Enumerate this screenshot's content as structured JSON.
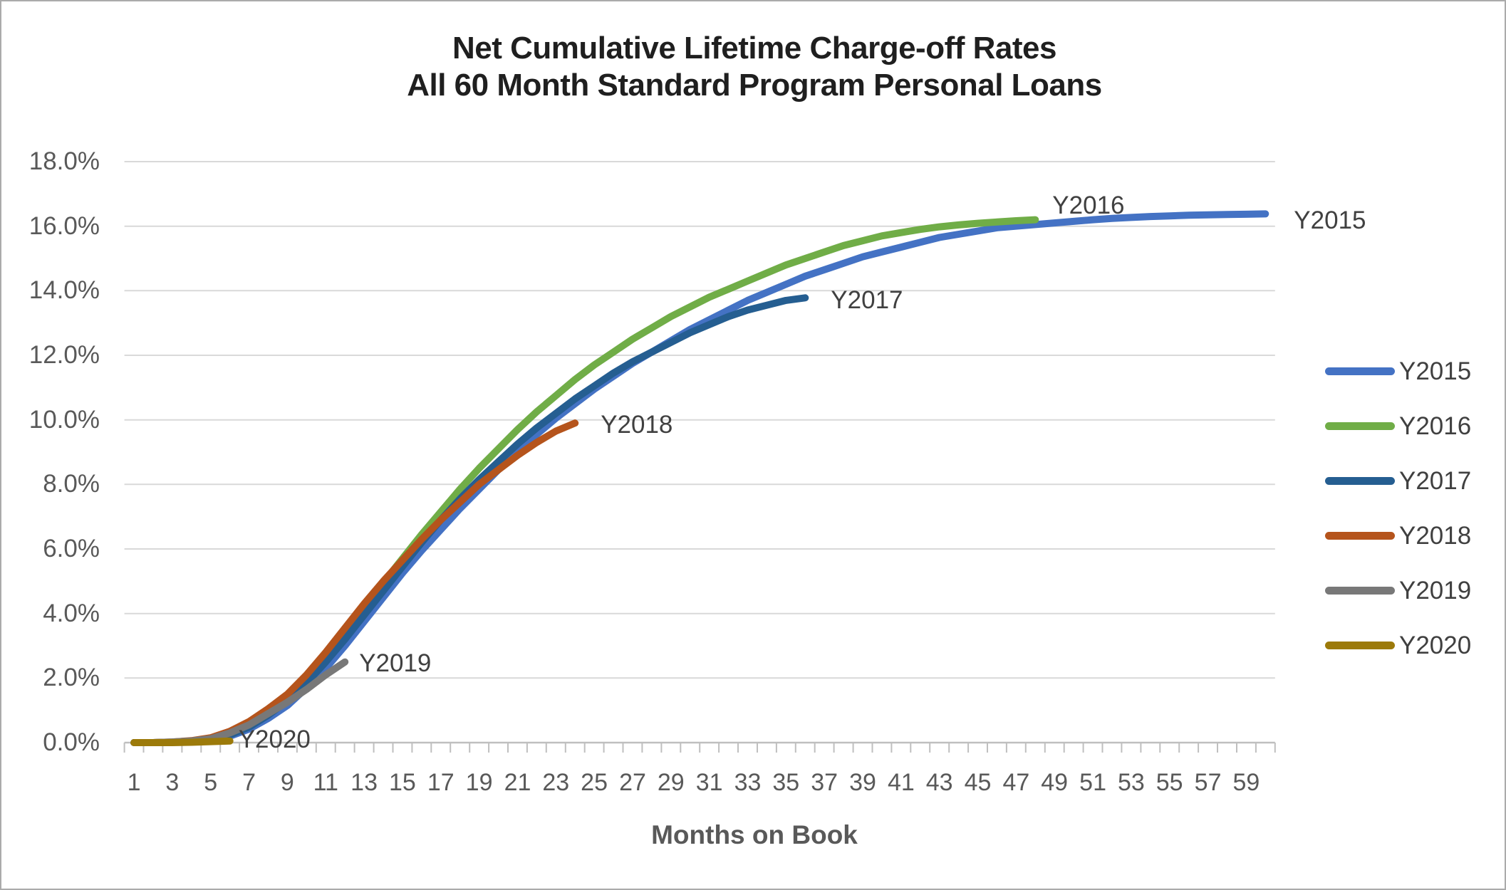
{
  "title": {
    "line1": "Net Cumulative Lifetime Charge-off Rates",
    "line2": "All 60 Month Standard Program Personal Loans"
  },
  "chart_data": {
    "type": "line",
    "title": "Net Cumulative Lifetime Charge-off Rates — All 60 Month Standard Program Personal Loans",
    "xlabel": "Months on Book",
    "ylabel": "",
    "ylim": [
      0,
      18
    ],
    "y_tick_step": 2,
    "y_tick_labels": [
      "18.0%",
      "16.0%",
      "14.0%",
      "12.0%",
      "10.0%",
      "8.0%",
      "6.0%",
      "4.0%",
      "2.0%",
      "0.0%"
    ],
    "x_tick_labels": [
      "1",
      "3",
      "5",
      "7",
      "9",
      "11",
      "13",
      "15",
      "17",
      "19",
      "21",
      "23",
      "25",
      "27",
      "29",
      "31",
      "33",
      "35",
      "37",
      "39",
      "41",
      "43",
      "45",
      "47",
      "49",
      "51",
      "53",
      "55",
      "57",
      "59"
    ],
    "x_categories_count": 60,
    "grid": true,
    "grid_color": "#d9d9d9",
    "axis_color": "#bfbfbf",
    "tick_label_color": "#595959",
    "data_label_color": "#404040",
    "legend_position": "right",
    "series": [
      {
        "name": "Y2015",
        "color": "#4472c4",
        "start_month": 1,
        "label_offset": [
          40,
          10
        ],
        "values": [
          0.0,
          0.0,
          0.01,
          0.03,
          0.08,
          0.2,
          0.42,
          0.75,
          1.15,
          1.7,
          2.3,
          3.0,
          3.75,
          4.5,
          5.25,
          5.95,
          6.6,
          7.25,
          7.85,
          8.45,
          9.0,
          9.55,
          10.05,
          10.5,
          10.95,
          11.35,
          11.75,
          12.1,
          12.45,
          12.8,
          13.1,
          13.4,
          13.7,
          13.95,
          14.2,
          14.45,
          14.65,
          14.85,
          15.05,
          15.2,
          15.35,
          15.5,
          15.65,
          15.75,
          15.85,
          15.95,
          16.0,
          16.05,
          16.1,
          16.15,
          16.2,
          16.24,
          16.27,
          16.3,
          16.32,
          16.34,
          16.35,
          16.36,
          16.37,
          16.38
        ]
      },
      {
        "name": "Y2016",
        "color": "#70ad47",
        "start_month": 1,
        "label_offset": [
          24,
          -20
        ],
        "values": [
          0.0,
          0.0,
          0.01,
          0.04,
          0.1,
          0.25,
          0.5,
          0.9,
          1.35,
          1.95,
          2.6,
          3.35,
          4.15,
          4.95,
          5.7,
          6.45,
          7.15,
          7.85,
          8.5,
          9.1,
          9.7,
          10.25,
          10.75,
          11.25,
          11.7,
          12.1,
          12.5,
          12.85,
          13.2,
          13.5,
          13.8,
          14.05,
          14.3,
          14.55,
          14.8,
          15.0,
          15.2,
          15.4,
          15.55,
          15.7,
          15.8,
          15.9,
          15.98,
          16.04,
          16.09,
          16.13,
          16.17,
          16.2
        ]
      },
      {
        "name": "Y2017",
        "color": "#255e91",
        "start_month": 1,
        "label_offset": [
          36,
          4
        ],
        "values": [
          0.0,
          0.0,
          0.01,
          0.04,
          0.1,
          0.24,
          0.48,
          0.85,
          1.3,
          1.85,
          2.5,
          3.2,
          3.95,
          4.7,
          5.45,
          6.2,
          6.9,
          7.55,
          8.15,
          8.7,
          9.25,
          9.75,
          10.2,
          10.65,
          11.05,
          11.45,
          11.8,
          12.1,
          12.4,
          12.7,
          12.95,
          13.2,
          13.4,
          13.55,
          13.7,
          13.78
        ]
      },
      {
        "name": "Y2018",
        "color": "#b5541c",
        "start_month": 1,
        "label_offset": [
          36,
          3
        ],
        "values": [
          0.0,
          0.0,
          0.02,
          0.06,
          0.15,
          0.35,
          0.65,
          1.05,
          1.5,
          2.1,
          2.8,
          3.55,
          4.3,
          5.0,
          5.65,
          6.3,
          6.9,
          7.45,
          8.0,
          8.45,
          8.9,
          9.3,
          9.65,
          9.9
        ]
      },
      {
        "name": "Y2019",
        "color": "#787878",
        "start_month": 1,
        "label_offset": [
          20,
          2
        ],
        "values": [
          0.0,
          0.0,
          0.02,
          0.05,
          0.12,
          0.3,
          0.55,
          0.9,
          1.25,
          1.65,
          2.1,
          2.5
        ]
      },
      {
        "name": "Y2020",
        "color": "#9c7a0a",
        "start_month": 1,
        "label_offset": [
          12,
          -2
        ],
        "values": [
          0.0,
          0.0,
          0.0,
          0.01,
          0.03,
          0.05
        ]
      }
    ]
  }
}
